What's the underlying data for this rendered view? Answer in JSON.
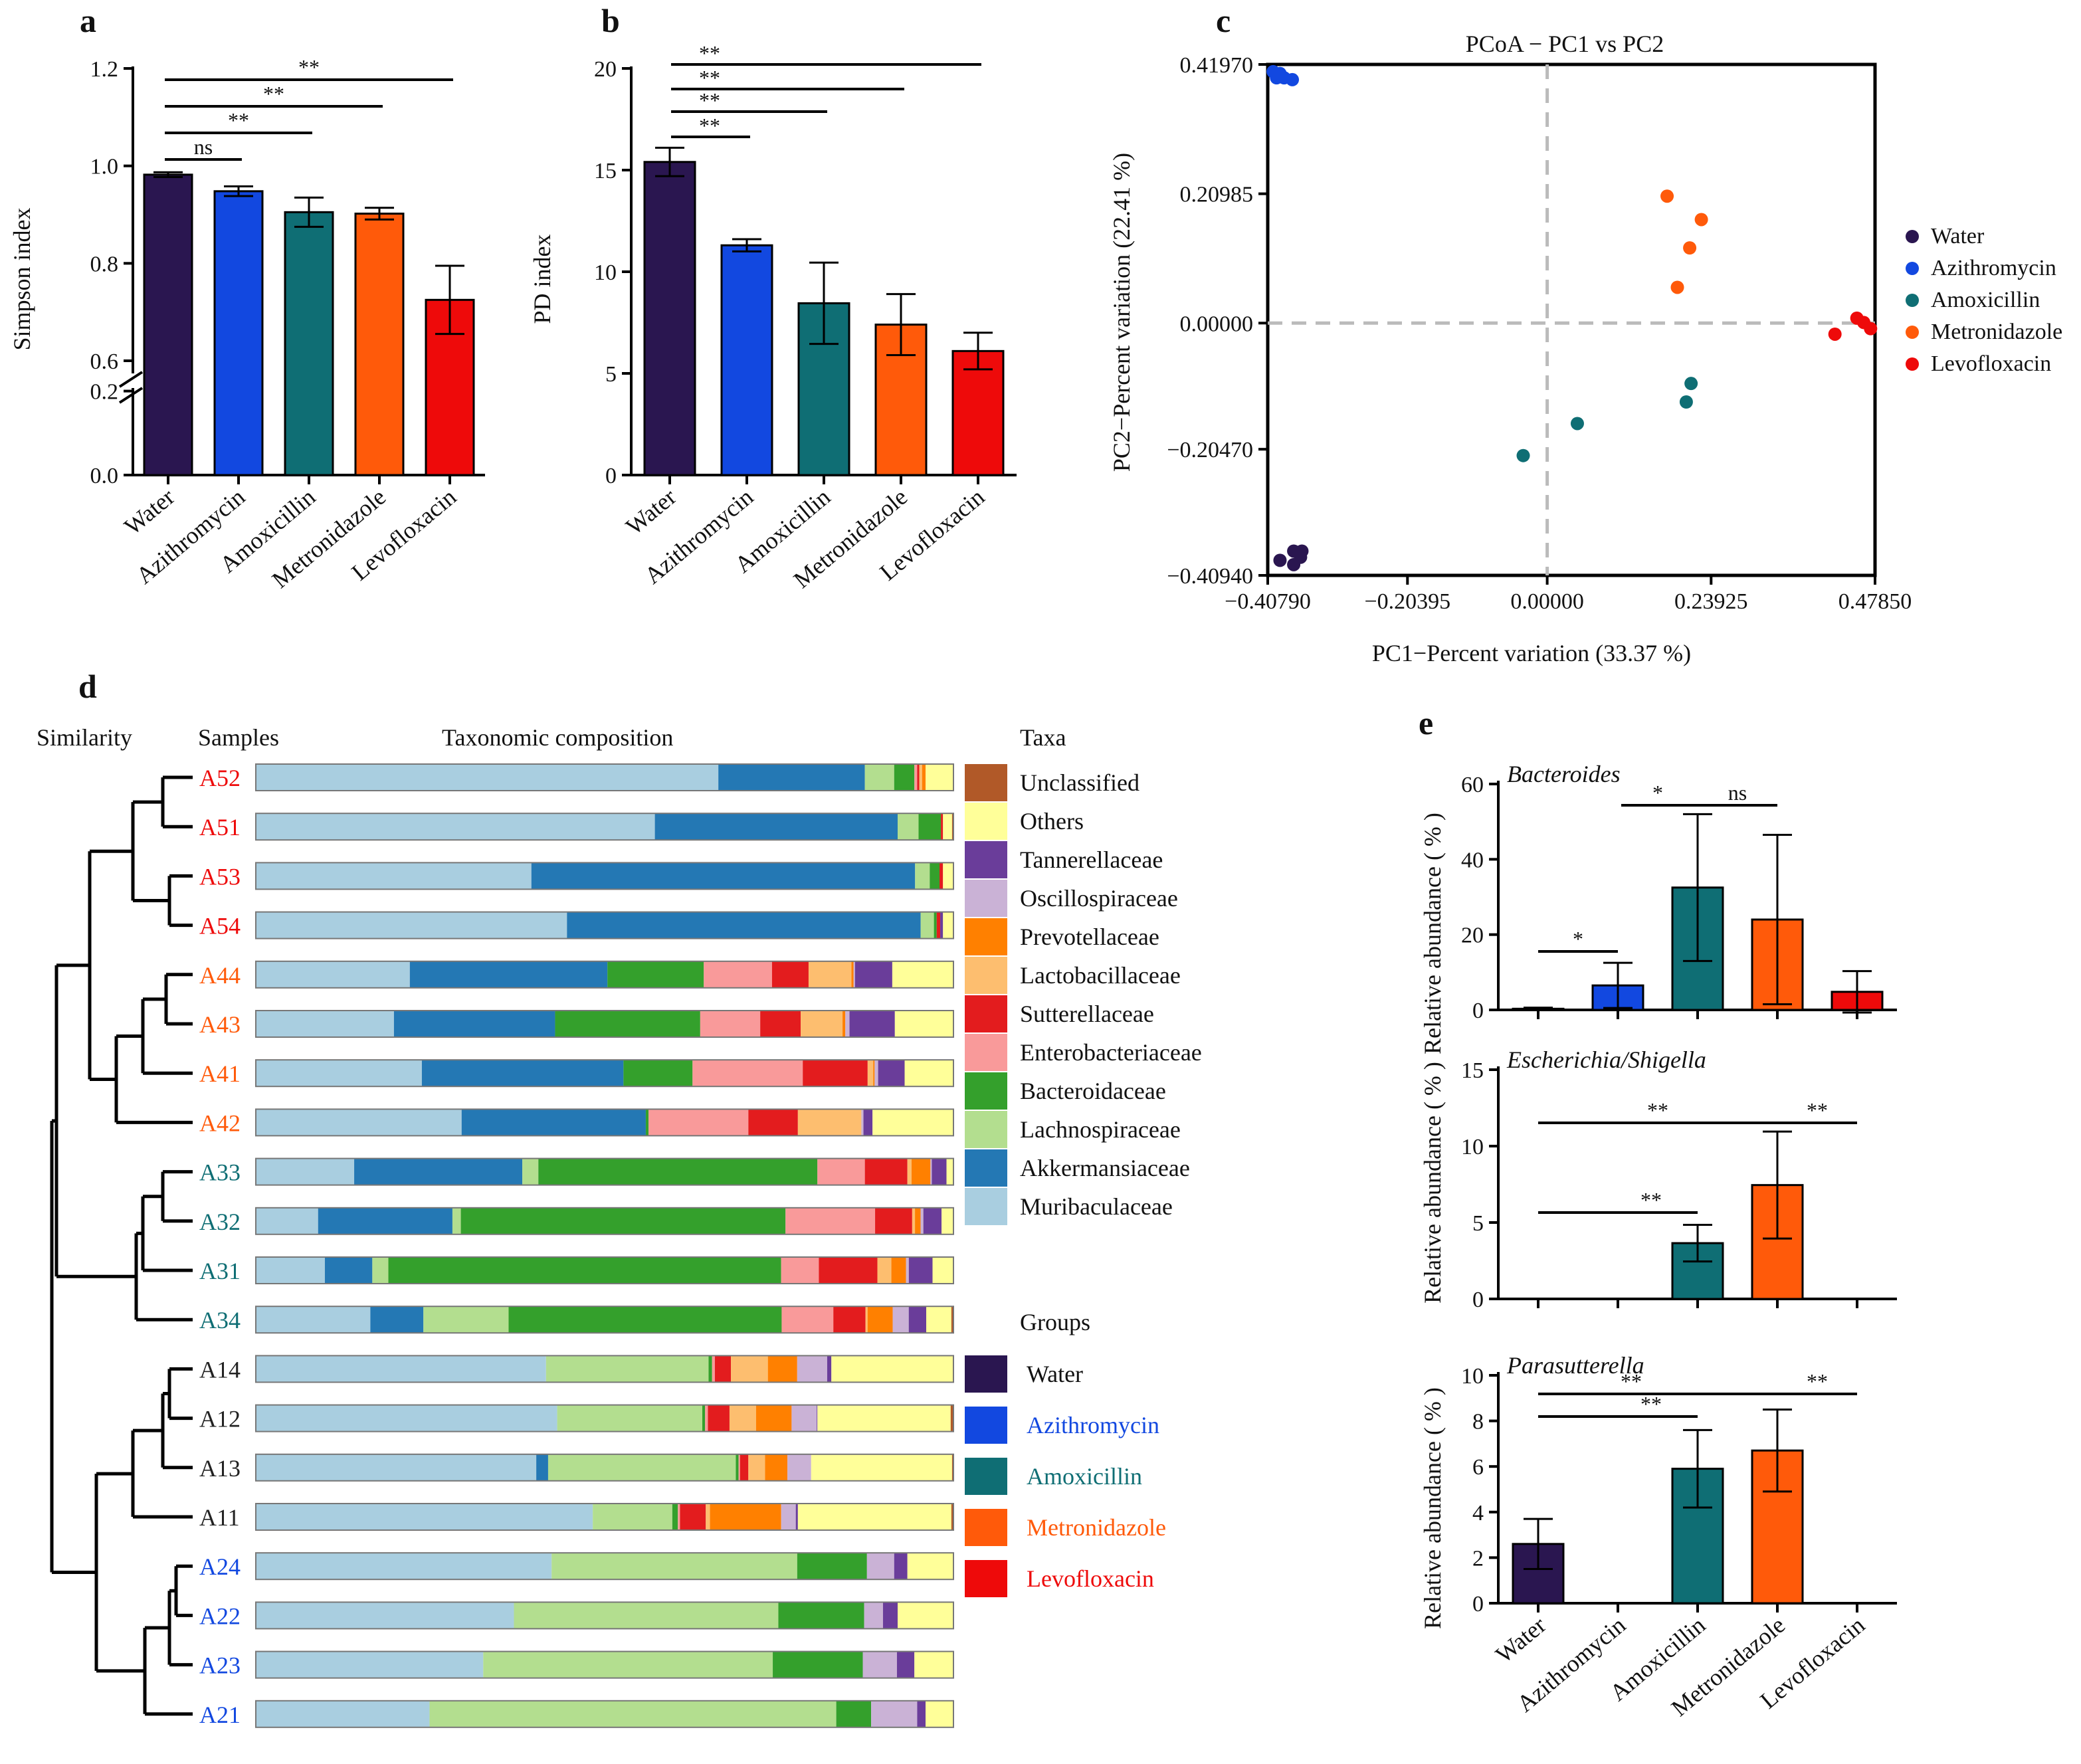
{
  "colors": {
    "Water": "#2a1650",
    "Azithromycin": "#1248e0",
    "Amoxicillin": "#0f6e74",
    "Metronidazole": "#ff5a0a",
    "Levofloxacin": "#ee0a0a"
  },
  "chart_data": [
    {
      "panel": "a",
      "type": "bar",
      "ylabel": "Simpson index",
      "categories": [
        "Water",
        "Azithromycin",
        "Amoxicillin",
        "Metronidazole",
        "Levofloxacin"
      ],
      "values": [
        0.982,
        0.948,
        0.905,
        0.902,
        0.725
      ],
      "errors": [
        0.005,
        0.01,
        0.03,
        0.012,
        0.07
      ],
      "y_ticks": [
        "0.0",
        "0.2",
        "0.6",
        "0.8",
        "1.0",
        "1.2"
      ],
      "broken_axis": [
        0.2,
        0.6
      ],
      "significance": [
        {
          "from": "Water",
          "to": "Azithromycin",
          "label": "ns"
        },
        {
          "from": "Water",
          "to": "Amoxicillin",
          "label": "**"
        },
        {
          "from": "Water",
          "to": "Metronidazole",
          "label": "**"
        },
        {
          "from": "Water",
          "to": "Levofloxacin",
          "label": "**"
        }
      ]
    },
    {
      "panel": "b",
      "type": "bar",
      "ylabel": "PD index",
      "categories": [
        "Water",
        "Azithromycin",
        "Amoxicillin",
        "Metronidazole",
        "Levofloxacin"
      ],
      "values": [
        15.4,
        11.3,
        8.45,
        7.4,
        6.1
      ],
      "errors": [
        0.7,
        0.3,
        2.0,
        1.5,
        0.9
      ],
      "y_ticks": [
        "0",
        "5",
        "10",
        "15",
        "20"
      ],
      "ylim": [
        0,
        20
      ],
      "significance": [
        {
          "from": "Water",
          "to": "Azithromycin",
          "label": "**"
        },
        {
          "from": "Water",
          "to": "Amoxicillin",
          "label": "**"
        },
        {
          "from": "Water",
          "to": "Metronidazole",
          "label": "**"
        },
        {
          "from": "Water",
          "to": "Levofloxacin",
          "label": "**"
        }
      ]
    },
    {
      "panel": "c",
      "type": "scatter",
      "title": "PCoA − PC1 vs PC2",
      "xlabel": "PC1−Percent variation (33.37 %)",
      "ylabel": "PC2−Percent variation  (22.41 %)",
      "x_ticks": [
        "−0.40790",
        "−0.20395",
        "0.00000",
        "0.23925",
        "0.47850"
      ],
      "y_ticks": [
        "0.41970",
        "0.20985",
        "0.00000",
        "−0.20470",
        "−0.40940"
      ],
      "xlim": [
        -0.4079,
        0.4785
      ],
      "ylim": [
        -0.4094,
        0.4197
      ],
      "legend": [
        "Water",
        "Azithromycin",
        "Amoxicillin",
        "Metronidazole",
        "Levofloxacin"
      ],
      "points": {
        "Water": [
          [
            -0.39,
            -0.385
          ],
          [
            -0.37,
            -0.37
          ],
          [
            -0.36,
            -0.38
          ],
          [
            -0.37,
            -0.392
          ],
          [
            -0.358,
            -0.37
          ]
        ],
        "Azithromycin": [
          [
            -0.4,
            0.408
          ],
          [
            -0.395,
            0.398
          ],
          [
            -0.39,
            0.405
          ],
          [
            -0.384,
            0.398
          ],
          [
            -0.372,
            0.395
          ]
        ],
        "Amoxicillin": [
          [
            -0.035,
            -0.215
          ],
          [
            0.044,
            -0.163
          ],
          [
            0.203,
            -0.128
          ],
          [
            0.21,
            -0.098
          ]
        ],
        "Metronidazole": [
          [
            0.175,
            0.206
          ],
          [
            0.225,
            0.168
          ],
          [
            0.208,
            0.122
          ],
          [
            0.19,
            0.058
          ]
        ],
        "Levofloxacin": [
          [
            0.42,
            -0.018
          ],
          [
            0.452,
            0.008
          ],
          [
            0.462,
            0.001
          ],
          [
            0.472,
            -0.009
          ]
        ]
      }
    },
    {
      "panel": "d",
      "type": "stacked-bar",
      "headers": {
        "similarity": "Similarity",
        "samples": "Samples",
        "composition": "Taxonomic composition",
        "taxa": "Taxa",
        "groups": "Groups"
      },
      "taxa": [
        {
          "name": "Muribaculaceae",
          "color": "#a9cee0"
        },
        {
          "name": "Akkermansiaceae",
          "color": "#2478b4"
        },
        {
          "name": "Lachnospiraceae",
          "color": "#b3de8f"
        },
        {
          "name": "Bacteroidaceae",
          "color": "#34a02c"
        },
        {
          "name": "Enterobacteriaceae",
          "color": "#f99a9a"
        },
        {
          "name": "Sutterellaceae",
          "color": "#e31c1e"
        },
        {
          "name": "Lactobacillaceae",
          "color": "#fdbe6f"
        },
        {
          "name": "Prevotellaceae",
          "color": "#ff8000"
        },
        {
          "name": "Oscillospiraceae",
          "color": "#cab2d6"
        },
        {
          "name": "Tannerellaceae",
          "color": "#6a3d9a"
        },
        {
          "name": "Others",
          "color": "#ffff99"
        },
        {
          "name": "Unclassified",
          "color": "#b15928"
        }
      ],
      "groups": [
        "Water",
        "Azithromycin",
        "Amoxicillin",
        "Metronidazole",
        "Levofloxacin"
      ],
      "samples": [
        {
          "id": "A52",
          "group": "Levofloxacin",
          "values": [
            66.3,
            21.0,
            4.2,
            2.9,
            0.4,
            0.3,
            0.4,
            0.5,
            0,
            0,
            4.0,
            0
          ]
        },
        {
          "id": "A51",
          "group": "Levofloxacin",
          "values": [
            57.2,
            34.8,
            3.0,
            3.2,
            0,
            0.3,
            0,
            0,
            0,
            0,
            1.3,
            0.2
          ]
        },
        {
          "id": "A53",
          "group": "Levofloxacin",
          "values": [
            39.5,
            55.0,
            2.1,
            1.4,
            0,
            0.5,
            0,
            0,
            0,
            0,
            1.5,
            0
          ]
        },
        {
          "id": "A54",
          "group": "Levofloxacin",
          "values": [
            44.6,
            50.7,
            1.9,
            0.4,
            0,
            0.5,
            0,
            0,
            0,
            0.4,
            1.5,
            0
          ]
        },
        {
          "id": "A44",
          "group": "Metronidazole",
          "values": [
            21.9,
            28.1,
            0,
            13.7,
            9.7,
            5.2,
            6.1,
            0.3,
            0.2,
            5.3,
            8.7,
            0
          ]
        },
        {
          "id": "A43",
          "group": "Metronidazole",
          "values": [
            19.8,
            23.1,
            0,
            20.8,
            8.6,
            5.8,
            6.0,
            0.4,
            0.6,
            6.5,
            8.4,
            0
          ]
        },
        {
          "id": "A41",
          "group": "Metronidazole",
          "values": [
            23.8,
            28.9,
            0,
            9.9,
            15.8,
            9.3,
            0.8,
            0.2,
            0.5,
            3.8,
            7.0,
            0
          ]
        },
        {
          "id": "A42",
          "group": "Metronidazole",
          "values": [
            29.5,
            26.4,
            0,
            0.4,
            14.3,
            7.1,
            9.1,
            0,
            0.3,
            1.3,
            11.6,
            0
          ]
        },
        {
          "id": "A33",
          "group": "Amoxicillin",
          "values": [
            14.1,
            24.1,
            2.3,
            40.0,
            6.8,
            6.1,
            0.6,
            2.7,
            0.2,
            2.1,
            1.0,
            0
          ]
        },
        {
          "id": "A32",
          "group": "Amoxicillin",
          "values": [
            8.9,
            19.2,
            1.2,
            46.4,
            12.8,
            5.3,
            0.4,
            0.8,
            0.4,
            2.6,
            1.7,
            0
          ]
        },
        {
          "id": "A31",
          "group": "Amoxicillin",
          "values": [
            9.9,
            6.8,
            2.3,
            56.3,
            5.4,
            8.4,
            2.0,
            2.1,
            0.4,
            3.4,
            3.0,
            0
          ]
        },
        {
          "id": "A34",
          "group": "Amoxicillin",
          "values": [
            16.4,
            7.6,
            12.2,
            39.1,
            7.4,
            4.6,
            0.3,
            3.6,
            2.3,
            2.5,
            3.6,
            0.3
          ]
        },
        {
          "id": "A14",
          "group": "Water",
          "values": [
            41.6,
            0,
            23.3,
            0.5,
            0.4,
            2.3,
            5.3,
            4.2,
            4.3,
            0.6,
            17.4,
            0.1
          ]
        },
        {
          "id": "A12",
          "group": "Water",
          "values": [
            43.2,
            0,
            20.8,
            0.4,
            0.4,
            3.1,
            3.8,
            5.1,
            3.6,
            0.1,
            19.1,
            0.4
          ]
        },
        {
          "id": "A13",
          "group": "Water",
          "values": [
            40.2,
            1.7,
            26.9,
            0.4,
            0.2,
            1.2,
            2.4,
            3.2,
            3.4,
            0,
            20.2,
            0.2
          ]
        },
        {
          "id": "A11",
          "group": "Water",
          "values": [
            48.3,
            0,
            11.4,
            0.8,
            0.3,
            3.7,
            0.6,
            10.2,
            2.1,
            0.3,
            22.0,
            0.3
          ]
        },
        {
          "id": "A24",
          "group": "Azithromycin",
          "values": [
            42.4,
            0,
            35.2,
            10.0,
            0,
            0,
            0,
            0,
            3.9,
            1.9,
            6.6,
            0
          ]
        },
        {
          "id": "A22",
          "group": "Azithromycin",
          "values": [
            37.0,
            0,
            37.9,
            12.3,
            0,
            0,
            0,
            0,
            2.7,
            2.1,
            8.0,
            0
          ]
        },
        {
          "id": "A23",
          "group": "Azithromycin",
          "values": [
            32.6,
            0,
            41.5,
            12.9,
            0,
            0,
            0,
            0,
            4.9,
            2.5,
            5.6,
            0
          ]
        },
        {
          "id": "A21",
          "group": "Azithromycin",
          "values": [
            24.9,
            0,
            58.3,
            5.0,
            0,
            0,
            0,
            0,
            6.6,
            1.2,
            4.0,
            0
          ]
        }
      ]
    },
    {
      "panel": "e",
      "type": "bar",
      "ylabel": "Relative abundance ( % )",
      "categories": [
        "Water",
        "Azithromycin",
        "Amoxicillin",
        "Metronidazole",
        "Levofloxacin"
      ],
      "subplots": [
        {
          "title": "Bacteroides",
          "ylim": [
            0,
            60
          ],
          "y_ticks": [
            "0",
            "20",
            "40",
            "60"
          ],
          "values": [
            0.3,
            6.5,
            32.5,
            24.0,
            4.8
          ],
          "errors": [
            0.3,
            6.0,
            19.5,
            22.5,
            5.5
          ],
          "significance": [
            {
              "from": "Water",
              "to": "Azithromycin",
              "label": "*"
            },
            {
              "from": "Azithromycin",
              "to": "Amoxicillin",
              "label": "*"
            },
            {
              "from": "Amoxicillin",
              "to": "Metronidazole",
              "label": "ns"
            }
          ]
        },
        {
          "title": "Escherichia/Shigella",
          "ylim": [
            0,
            15
          ],
          "y_ticks": [
            "0",
            "5",
            "10",
            "15"
          ],
          "values": [
            0,
            0,
            3.65,
            7.45,
            0
          ],
          "errors": [
            0,
            0,
            1.2,
            3.5,
            0
          ],
          "significance": [
            {
              "from": "Water",
              "to": "Metronidazole",
              "label": "**"
            },
            {
              "from": "Metronidazole",
              "to": "Levofloxacin",
              "label": "**"
            },
            {
              "from": "Water",
              "to": "Amoxicillin",
              "label": "**"
            }
          ]
        },
        {
          "title": "Parasutterella",
          "ylim": [
            0,
            10
          ],
          "y_ticks": [
            "0",
            "2",
            "4",
            "6",
            "8",
            "10"
          ],
          "values": [
            2.6,
            0,
            5.9,
            6.7,
            0
          ],
          "errors": [
            1.1,
            0,
            1.7,
            1.8,
            0
          ],
          "significance": [
            {
              "from": "Water",
              "to": "Metronidazole",
              "label": "**"
            },
            {
              "from": "Metronidazole",
              "to": "Levofloxacin",
              "label": "**"
            },
            {
              "from": "Water",
              "to": "Amoxicillin",
              "label": "**"
            }
          ]
        }
      ]
    }
  ]
}
